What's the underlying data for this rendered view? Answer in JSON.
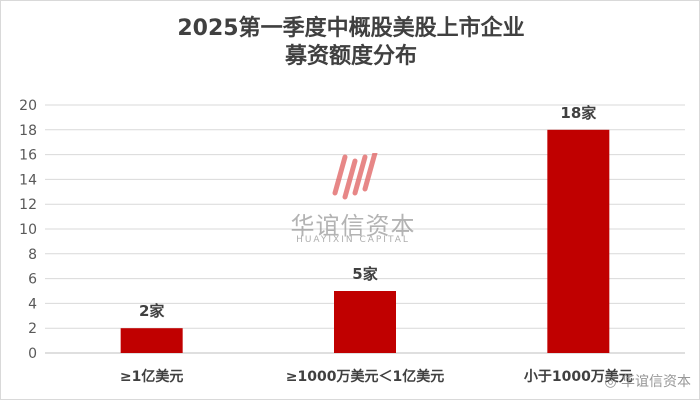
{
  "chart_data": {
    "type": "bar",
    "title_line1": "2025第一季度中概股美股上市企业",
    "title_line2": "募资额度分布",
    "categories": [
      "≥1亿美元",
      "≥1000万美元＜1亿美元",
      "小于1000万美元"
    ],
    "values": [
      2,
      5,
      18
    ],
    "data_labels": [
      "2家",
      "5家",
      "18家"
    ],
    "ylim": [
      0,
      20
    ],
    "yticks": [
      0,
      2,
      4,
      6,
      8,
      10,
      12,
      14,
      16,
      18,
      20
    ],
    "grid": true,
    "bar_color": "#c00000"
  },
  "watermark": {
    "cn": "华谊信资本",
    "en": "HUAYIXIN CAPITAL",
    "logo_color": "#e06060",
    "corner": "华谊信资本"
  }
}
